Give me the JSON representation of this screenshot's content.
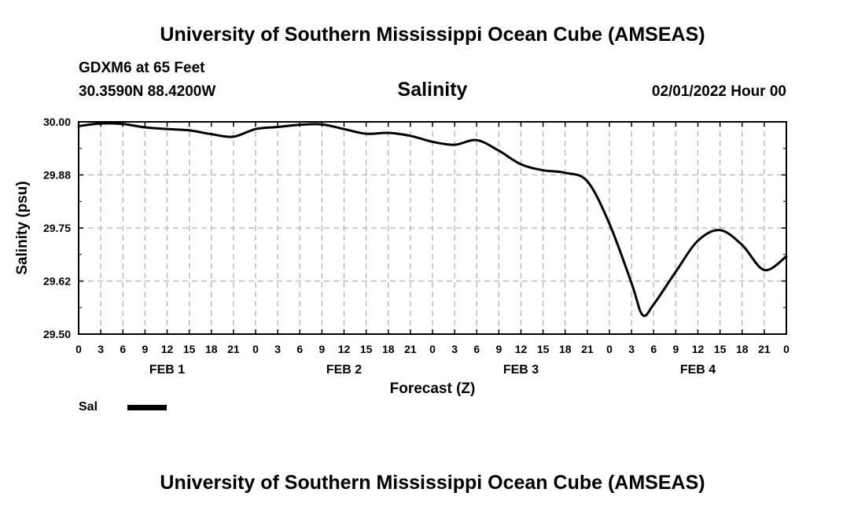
{
  "header": {
    "title": "University of Southern Mississippi Ocean Cube (AMSEAS)",
    "station": "GDXM6 at 65 Feet",
    "coords": "30.3590N  88.4200W",
    "date": "02/01/2022 Hour 00",
    "footer_title": "University of Southern Mississippi Ocean Cube (AMSEAS)"
  },
  "legend": {
    "label": "Sal",
    "color": "#000000"
  },
  "chart_data": {
    "type": "line",
    "title": "Salinity",
    "xlabel": "Forecast (Z)",
    "ylabel": "Salinity (psu)",
    "xlim": [
      0,
      96
    ],
    "ylim": [
      29.5,
      30.0
    ],
    "grid": true,
    "y_ticks": [
      "30.00",
      "29.88",
      "29.75",
      "29.62",
      "29.50"
    ],
    "y_tick_values": [
      30.0,
      29.875,
      29.75,
      29.625,
      29.5
    ],
    "x_ticks": [
      {
        "hour": 0,
        "label": "0"
      },
      {
        "hour": 3,
        "label": "3"
      },
      {
        "hour": 6,
        "label": "6"
      },
      {
        "hour": 9,
        "label": "9"
      },
      {
        "hour": 12,
        "label": "12"
      },
      {
        "hour": 15,
        "label": "15"
      },
      {
        "hour": 18,
        "label": "18"
      },
      {
        "hour": 21,
        "label": "21"
      },
      {
        "hour": 24,
        "label": "0"
      },
      {
        "hour": 27,
        "label": "3"
      },
      {
        "hour": 30,
        "label": "6"
      },
      {
        "hour": 33,
        "label": "9"
      },
      {
        "hour": 36,
        "label": "12"
      },
      {
        "hour": 39,
        "label": "15"
      },
      {
        "hour": 42,
        "label": "18"
      },
      {
        "hour": 45,
        "label": "21"
      },
      {
        "hour": 48,
        "label": "0"
      },
      {
        "hour": 51,
        "label": "3"
      },
      {
        "hour": 54,
        "label": "6"
      },
      {
        "hour": 57,
        "label": "9"
      },
      {
        "hour": 60,
        "label": "12"
      },
      {
        "hour": 63,
        "label": "15"
      },
      {
        "hour": 66,
        "label": "18"
      },
      {
        "hour": 69,
        "label": "21"
      },
      {
        "hour": 72,
        "label": "0"
      },
      {
        "hour": 75,
        "label": "3"
      },
      {
        "hour": 78,
        "label": "6"
      },
      {
        "hour": 81,
        "label": "9"
      },
      {
        "hour": 84,
        "label": "12"
      },
      {
        "hour": 87,
        "label": "15"
      },
      {
        "hour": 90,
        "label": "18"
      },
      {
        "hour": 93,
        "label": "21"
      },
      {
        "hour": 96,
        "label": "0"
      }
    ],
    "day_labels": [
      {
        "hour": 12,
        "label": "FEB 1"
      },
      {
        "hour": 36,
        "label": "FEB 2"
      },
      {
        "hour": 60,
        "label": "FEB 3"
      },
      {
        "hour": 84,
        "label": "FEB 4"
      }
    ],
    "series": [
      {
        "name": "Sal",
        "x": [
          0,
          3,
          6,
          9,
          12,
          15,
          18,
          21,
          24,
          27,
          30,
          33,
          36,
          39,
          42,
          45,
          48,
          51,
          54,
          57,
          60,
          63,
          66,
          69,
          72,
          75,
          76.5,
          78,
          81,
          84,
          87,
          90,
          93,
          96
        ],
        "values": [
          29.99,
          29.996,
          29.995,
          29.987,
          29.983,
          29.98,
          29.971,
          29.965,
          29.983,
          29.988,
          29.993,
          29.994,
          29.983,
          29.972,
          29.974,
          29.967,
          29.953,
          29.946,
          29.957,
          29.932,
          29.9,
          29.886,
          29.88,
          29.86,
          29.76,
          29.62,
          29.545,
          29.57,
          29.647,
          29.72,
          29.745,
          29.71,
          29.651,
          29.683
        ]
      }
    ]
  }
}
